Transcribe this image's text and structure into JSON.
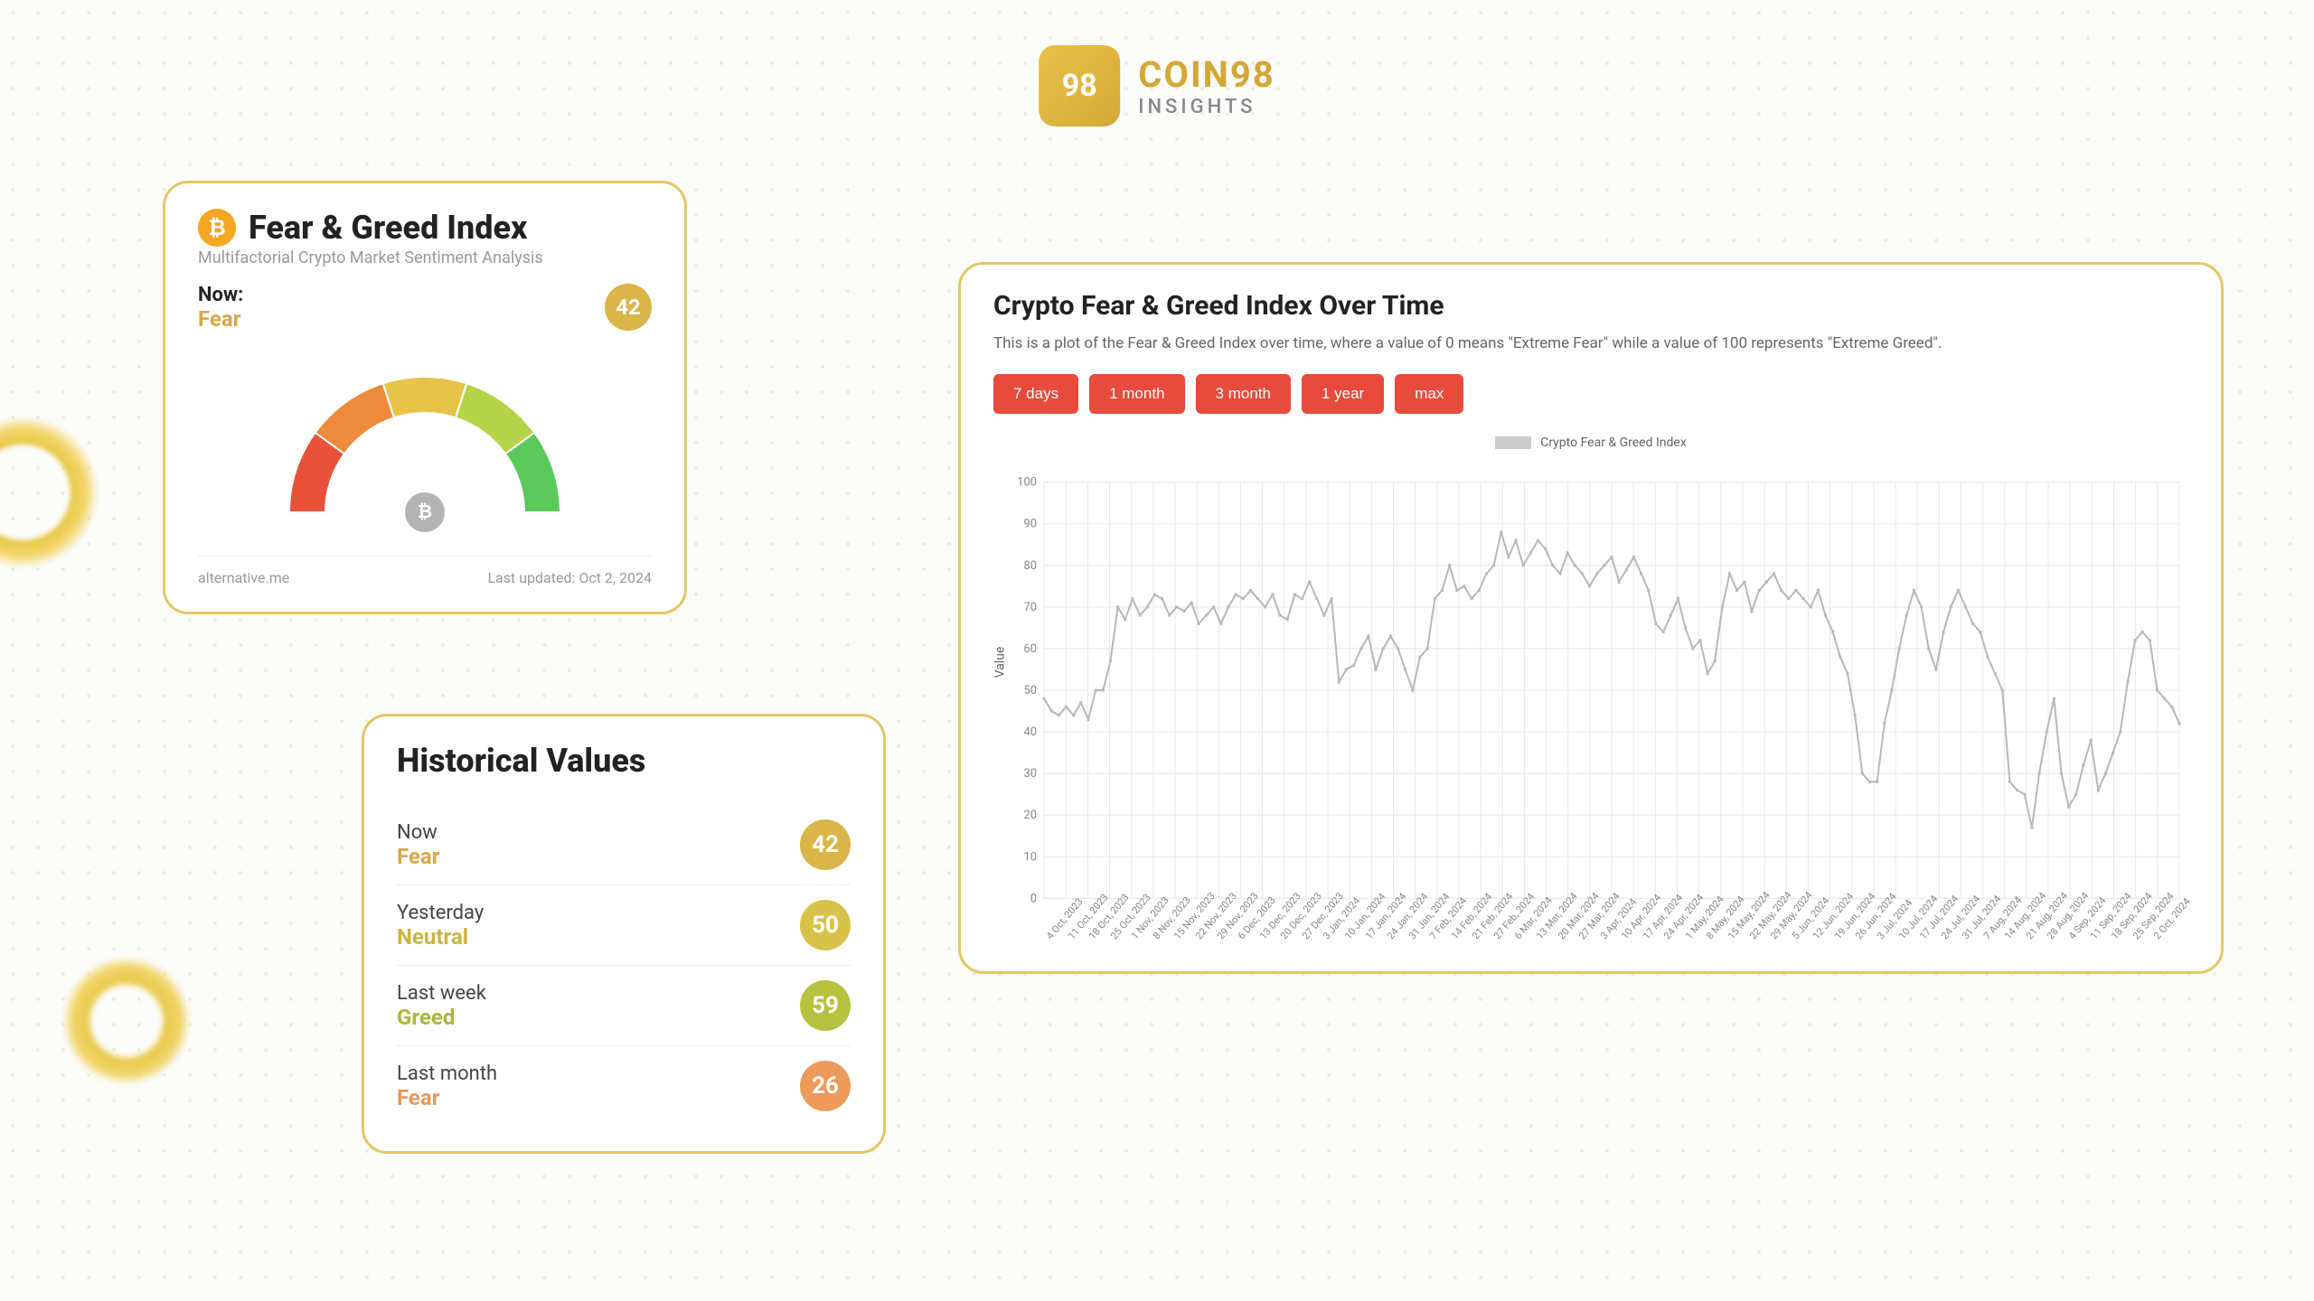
{
  "logo": {
    "brand": "COIN98",
    "subtitle": "INSIGHTS",
    "badge_text": "98"
  },
  "gauge": {
    "title": "Fear & Greed Index",
    "subtitle": "Multifactorial Crypto Market Sentiment Analysis",
    "now_label": "Now:",
    "sentiment": "Fear",
    "sentiment_color": "#d9a84a",
    "value": 42,
    "badge_color": "#d9b54a",
    "source": "alternative.me",
    "updated": "Last updated: Oct 2, 2024",
    "arc_colors": [
      "#e8523a",
      "#ee8a3b",
      "#e8c34a",
      "#b6d44a",
      "#5bc95b"
    ],
    "needle_color": "#b4b4b4",
    "hub_color": "#b4b4b4"
  },
  "historical": {
    "title": "Historical Values",
    "rows": [
      {
        "period": "Now",
        "sentiment": "Fear",
        "sentiment_color": "#d9a84a",
        "value": 42,
        "badge_color": "#d9b54a"
      },
      {
        "period": "Yesterday",
        "sentiment": "Neutral",
        "sentiment_color": "#c9b544",
        "value": 50,
        "badge_color": "#d8c34a"
      },
      {
        "period": "Last week",
        "sentiment": "Greed",
        "sentiment_color": "#a8b83e",
        "value": 59,
        "badge_color": "#b6c23e"
      },
      {
        "period": "Last month",
        "sentiment": "Fear",
        "sentiment_color": "#e89a5a",
        "value": 26,
        "badge_color": "#ee9a5a"
      }
    ]
  },
  "chart": {
    "title": "Crypto Fear & Greed Index Over Time",
    "description": "This is a plot of the Fear & Greed Index over time, where a value of 0 means \"Extreme Fear\" while a value of 100 represents \"Extreme Greed\".",
    "range_buttons": [
      "7 days",
      "1 month",
      "3 month",
      "1 year",
      "max"
    ],
    "button_color": "#e84a3b",
    "legend_label": "Crypto Fear & Greed Index",
    "y_axis_label": "Value",
    "ylim": [
      0,
      100
    ],
    "ytick_step": 10,
    "line_color": "#b8b8b8",
    "grid_color": "#e8e8e8",
    "x_labels": [
      "4 Oct, 2023",
      "11 Oct, 2023",
      "18 Oct, 2023",
      "25 Oct, 2023",
      "1 Nov, 2023",
      "8 Nov, 2023",
      "15 Nov, 2023",
      "22 Nov, 2023",
      "29 Nov, 2023",
      "6 Dec, 2023",
      "13 Dec, 2023",
      "20 Dec, 2023",
      "27 Dec, 2023",
      "3 Jan, 2024",
      "10 Jan, 2024",
      "17 Jan, 2024",
      "24 Jan, 2024",
      "31 Jan, 2024",
      "7 Feb, 2024",
      "14 Feb, 2024",
      "21 Feb, 2024",
      "27 Feb, 2024",
      "6 Mar, 2024",
      "13 Mar, 2024",
      "20 Mar, 2024",
      "27 Mar, 2024",
      "3 Apr, 2024",
      "10 Apr, 2024",
      "17 Apr, 2024",
      "24 Apr, 2024",
      "1 May, 2024",
      "8 May, 2024",
      "15 May, 2024",
      "22 May, 2024",
      "29 May, 2024",
      "5 Jun, 2024",
      "12 Jun, 2024",
      "19 Jun, 2024",
      "26 Jun, 2024",
      "3 Jul, 2024",
      "10 Jul, 2024",
      "17 Jul, 2024",
      "24 Jul, 2024",
      "31 Jul, 2024",
      "7 Aug, 2024",
      "14 Aug, 2024",
      "21 Aug, 2024",
      "28 Aug, 2024",
      "4 Sep, 2024",
      "11 Sep, 2024",
      "18 Sep, 2024",
      "25 Sep, 2024",
      "2 Oct, 2024"
    ],
    "values": [
      48,
      45,
      44,
      46,
      44,
      47,
      43,
      50,
      50,
      57,
      70,
      67,
      72,
      68,
      70,
      73,
      72,
      68,
      70,
      69,
      71,
      66,
      68,
      70,
      66,
      70,
      73,
      72,
      74,
      72,
      70,
      73,
      68,
      67,
      73,
      72,
      76,
      72,
      68,
      72,
      52,
      55,
      56,
      60,
      63,
      55,
      60,
      63,
      60,
      55,
      50,
      58,
      60,
      72,
      74,
      80,
      74,
      75,
      72,
      74,
      78,
      80,
      88,
      82,
      86,
      80,
      83,
      86,
      84,
      80,
      78,
      83,
      80,
      78,
      75,
      78,
      80,
      82,
      76,
      79,
      82,
      78,
      74,
      66,
      64,
      68,
      72,
      65,
      60,
      62,
      54,
      57,
      70,
      78,
      74,
      76,
      69,
      74,
      76,
      78,
      74,
      72,
      74,
      72,
      70,
      74,
      68,
      64,
      58,
      54,
      44,
      30,
      28,
      28,
      42,
      50,
      60,
      68,
      74,
      70,
      60,
      55,
      64,
      70,
      74,
      70,
      66,
      64,
      58,
      54,
      50,
      28,
      26,
      25,
      17,
      30,
      40,
      48,
      30,
      22,
      25,
      32,
      38,
      26,
      30,
      35,
      40,
      52,
      62,
      64,
      62,
      50,
      48,
      46,
      42
    ]
  }
}
